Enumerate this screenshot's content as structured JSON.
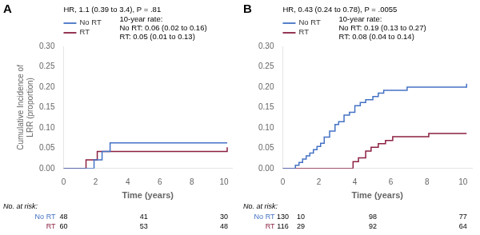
{
  "chart_data": [
    {
      "type": "step",
      "title": "A",
      "annotations": [
        "HR, 1.1 (0.39 to 3.4), P = .81",
        "10-year rate:\nNo RT: 0.06 (0.02 to 0.16)\nRT: 0.05 (0.01 to 0.13)"
      ],
      "xlabel": "Time (years)",
      "ylabel": "Cumulative Incidence of\nLRR (proportion)",
      "series": [
        {
          "name": "No RT",
          "color": "#4472C4",
          "x": [
            0,
            0.9,
            1.9,
            2.4,
            2.9,
            5.0,
            10.2
          ],
          "values": [
            0,
            0,
            0.021,
            0.042,
            0.063,
            0.063,
            0.063
          ]
        },
        {
          "name": "RT",
          "color": "#8B2040",
          "x": [
            0,
            1.0,
            1.4,
            2.1,
            9.7,
            10.2
          ],
          "values": [
            0,
            0,
            0.021,
            0.042,
            0.042,
            0.052
          ]
        }
      ],
      "xlim": [
        0,
        10.5
      ],
      "xticks": [
        0,
        2,
        4,
        6,
        8,
        10
      ],
      "ylim": [
        0,
        0.3
      ],
      "yticks": [
        {
          "value": 0.0,
          "label": "0.00"
        },
        {
          "value": 0.05,
          "label": "0.05"
        },
        {
          "value": 0.1,
          "label": "0.10"
        },
        {
          "value": 0.15,
          "label": "0.15"
        },
        {
          "value": 0.2,
          "label": "0.20"
        },
        {
          "value": 0.25,
          "label": "0.25"
        },
        {
          "value": 0.3,
          "label": "0.30"
        }
      ],
      "grid": false,
      "legend": "upper left",
      "at_risk": {
        "title": "No. at risk:",
        "x": [
          0,
          5,
          10
        ],
        "rows": [
          {
            "name": "No RT",
            "color": "#4472C4",
            "values": [
              48,
              41,
              30
            ]
          },
          {
            "name": "RT",
            "color": "#8B2040",
            "values": [
              60,
              53,
              48
            ]
          }
        ]
      }
    },
    {
      "type": "step",
      "title": "B",
      "annotations": [
        "HR, 0.43 (0.24 to 0.78), P = .0055",
        "10-year rate:\nNo RT: 0.19 (0.13 to 0.27)\nRT: 0.08 (0.04 to 0.14)"
      ],
      "xlabel": "Time (years)",
      "series": [
        {
          "name": "No RT",
          "color": "#4472C4",
          "x": [
            0,
            0.5,
            0.7,
            0.9,
            1.1,
            1.3,
            1.5,
            1.7,
            1.9,
            2.1,
            2.3,
            2.6,
            2.9,
            3.1,
            3.4,
            3.7,
            4.0,
            4.3,
            4.6,
            5.0,
            5.3,
            5.6,
            6.0,
            6.4,
            6.9,
            9.4,
            10.2
          ],
          "values": [
            0,
            0,
            0.008,
            0.015,
            0.023,
            0.031,
            0.038,
            0.046,
            0.054,
            0.062,
            0.077,
            0.092,
            0.108,
            0.115,
            0.131,
            0.138,
            0.154,
            0.162,
            0.169,
            0.177,
            0.185,
            0.192,
            0.192,
            0.192,
            0.2,
            0.2,
            0.208
          ]
        },
        {
          "name": "RT",
          "color": "#8B2040",
          "x": [
            0,
            3.4,
            3.9,
            4.2,
            4.6,
            4.9,
            5.3,
            5.7,
            6.1,
            6.7,
            7.1,
            7.7,
            8.1,
            10.2
          ],
          "values": [
            0,
            0,
            0.017,
            0.026,
            0.043,
            0.052,
            0.061,
            0.069,
            0.078,
            0.078,
            0.078,
            0.078,
            0.086,
            0.086
          ]
        }
      ],
      "xlim": [
        0,
        10.5
      ],
      "xticks": [
        0,
        2,
        4,
        6,
        8,
        10
      ],
      "ylim": [
        0,
        0.3
      ],
      "yticks": [
        {
          "value": 0.0,
          "label": "0.00"
        },
        {
          "value": 0.05,
          "label": "0.05"
        },
        {
          "value": 0.1,
          "label": "0.10"
        },
        {
          "value": 0.15,
          "label": "0.15"
        },
        {
          "value": 0.2,
          "label": "0.20"
        },
        {
          "value": 0.25,
          "label": "0.25"
        },
        {
          "value": 0.3,
          "label": "0.30"
        }
      ],
      "grid": false,
      "legend": "upper left",
      "at_risk": {
        "title": "No. at risk:",
        "x": [
          0,
          1,
          5,
          10
        ],
        "rows": [
          {
            "name": "No RT",
            "color": "#4472C4",
            "values": [
              130,
              10,
              98,
              77
            ]
          },
          {
            "name": "RT",
            "color": "#8B2040",
            "values": [
              116,
              29,
              92,
              64
            ]
          }
        ]
      }
    }
  ]
}
